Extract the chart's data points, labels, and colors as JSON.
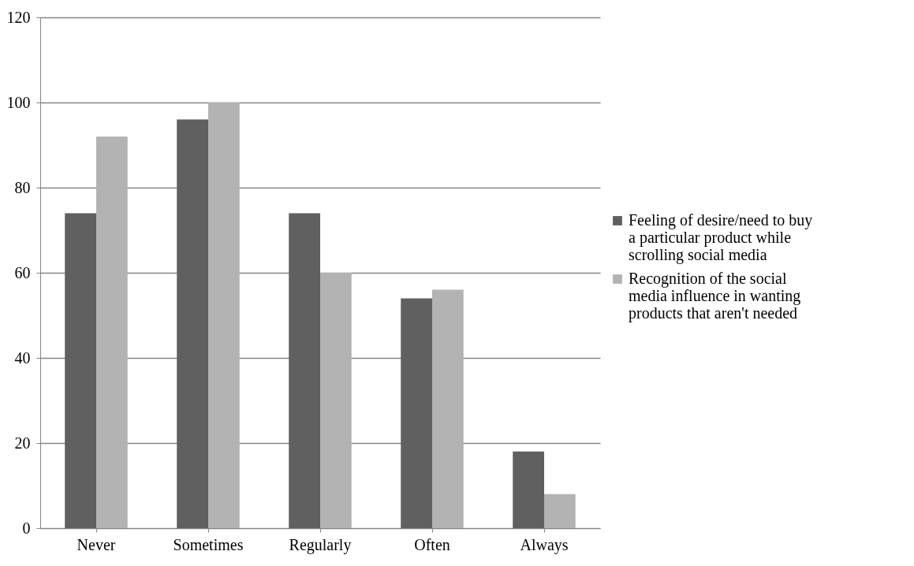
{
  "chart_data": {
    "type": "bar",
    "categories": [
      "Never",
      "Sometimes",
      "Regularly",
      "Often",
      "Always"
    ],
    "series": [
      {
        "name": "Feeling of desire/need to buy a particular product while scrolling social media",
        "color": "#606060",
        "values": [
          74,
          96,
          74,
          54,
          18
        ]
      },
      {
        "name": "Recognition of the social media influence in wanting products that aren't needed",
        "color": "#b3b3b3",
        "values": [
          92,
          100,
          60,
          56,
          8
        ]
      }
    ],
    "ylim": [
      0,
      120
    ],
    "yticks": [
      0,
      20,
      40,
      60,
      80,
      100,
      120
    ],
    "grid": "y",
    "legend": "right"
  }
}
